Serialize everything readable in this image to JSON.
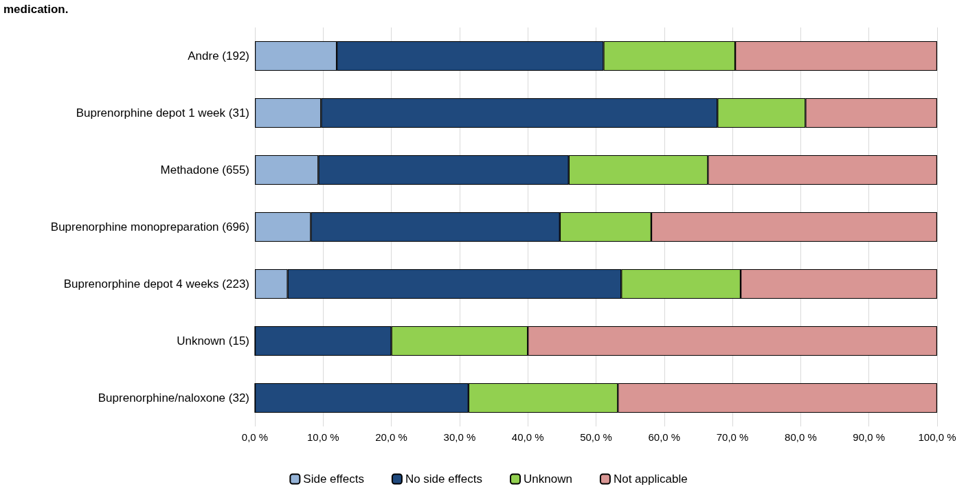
{
  "chart_data": {
    "type": "bar",
    "orientation": "horizontal",
    "stacked": true,
    "title": "medication.",
    "categories": [
      "Andre (192)",
      "Buprenorphine depot 1 week (31)",
      "Methadone (655)",
      "Buprenorphine monopreparation (696)",
      "Buprenorphine depot 4 weeks (223)",
      "Unknown (15)",
      "Buprenorphine/naloxone (32)"
    ],
    "series": [
      {
        "name": "Side effects",
        "color": "#95b3d7",
        "values": [
          12.0,
          9.7,
          9.3,
          8.2,
          4.8,
          0,
          0
        ]
      },
      {
        "name": "No side effects",
        "color": "#1f497d",
        "values": [
          39.1,
          58.1,
          36.7,
          36.5,
          48.9,
          20.0,
          31.3
        ]
      },
      {
        "name": "Unknown",
        "color": "#92d050",
        "values": [
          19.3,
          12.9,
          20.4,
          13.4,
          17.5,
          20.0,
          21.9
        ]
      },
      {
        "name": "Not applicable",
        "color": "#d99694",
        "values": [
          29.6,
          19.3,
          33.6,
          41.9,
          28.8,
          60.0,
          46.8
        ]
      }
    ],
    "xlim": [
      0,
      100
    ],
    "xticks": [
      {
        "value": 0,
        "label": "0,0 %"
      },
      {
        "value": 10,
        "label": "10,0 %"
      },
      {
        "value": 20,
        "label": "20,0 %"
      },
      {
        "value": 30,
        "label": "30,0 %"
      },
      {
        "value": 40,
        "label": "40,0 %"
      },
      {
        "value": 50,
        "label": "50,0 %"
      },
      {
        "value": 60,
        "label": "60,0 %"
      },
      {
        "value": 70,
        "label": "70,0 %"
      },
      {
        "value": 80,
        "label": "80,0 %"
      },
      {
        "value": 90,
        "label": "90,0 %"
      },
      {
        "value": 100,
        "label": "100,0 %"
      }
    ],
    "grid": "x",
    "legend": "bottom"
  }
}
